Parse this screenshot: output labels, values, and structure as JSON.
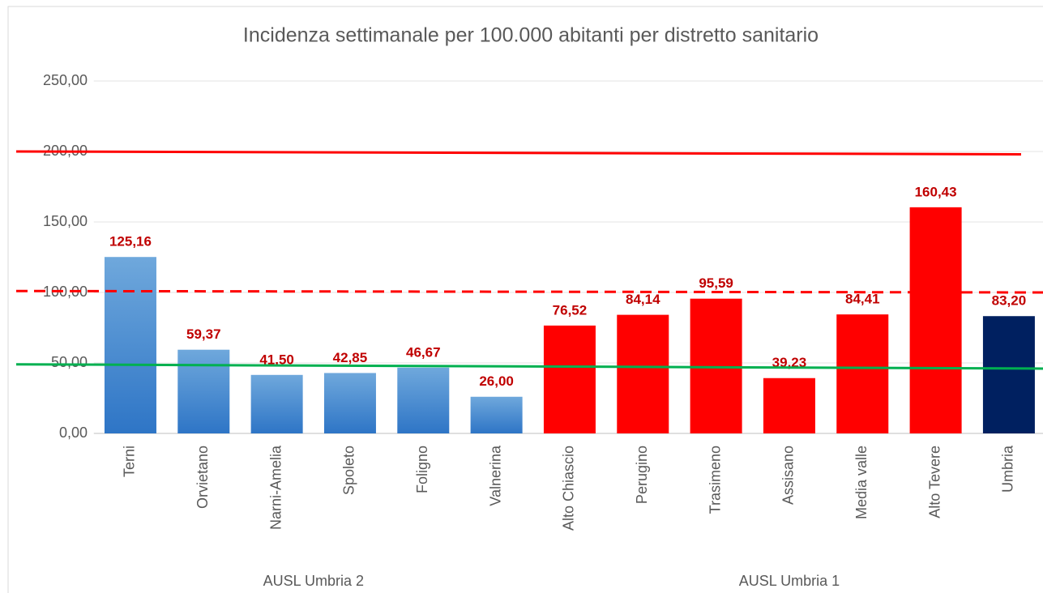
{
  "chart_data": {
    "type": "bar",
    "title": "Incidenza settimanale per 100.000 abitanti per distretto sanitario",
    "categories": [
      "Terni",
      "Orvietano",
      "Narni-Amelia",
      "Spoleto",
      "Foligno",
      "Valnerina",
      "Alto Chiascio",
      "Perugino",
      "Trasimeno",
      "Assisano",
      "Media valle",
      "Alto Tevere",
      "Umbria"
    ],
    "values": [
      125.16,
      59.37,
      41.5,
      42.85,
      46.67,
      26.0,
      76.52,
      84.14,
      95.59,
      39.23,
      84.41,
      160.43,
      83.2
    ],
    "value_labels": [
      "125,16",
      "59,37",
      "41,50",
      "42,85",
      "46,67",
      "26,00",
      "76,52",
      "84,14",
      "95,59",
      "39,23",
      "84,41",
      "160,43",
      "83,20"
    ],
    "colors": [
      "#3d85c6",
      "#3d85c6",
      "#3d85c6",
      "#3d85c6",
      "#3d85c6",
      "#3d85c6",
      "#ff0000",
      "#ff0000",
      "#ff0000",
      "#ff0000",
      "#ff0000",
      "#ff0000",
      "#002060"
    ],
    "groups": [
      {
        "label": "AUSL Umbria 2",
        "size": 6
      },
      {
        "label": "AUSL Umbria 1",
        "size": 7
      }
    ],
    "reference_lines": [
      {
        "values": [
          200,
          198
        ],
        "color": "#ff0000",
        "dashed": false
      },
      {
        "values": [
          101,
          100
        ],
        "color": "#ff0000",
        "dashed": true
      },
      {
        "values": [
          49,
          46
        ],
        "color": "#00b050",
        "dashed": false
      }
    ],
    "ylim": [
      0,
      250
    ],
    "yticks": [
      {
        "value": 0,
        "label": "0,00"
      },
      {
        "value": 50,
        "label": "50,00"
      },
      {
        "value": 100,
        "label": "100,00"
      },
      {
        "value": 150,
        "label": "150,00"
      },
      {
        "value": 200,
        "label": "200,00"
      },
      {
        "value": 250,
        "label": "250,00"
      }
    ],
    "grid": true
  }
}
